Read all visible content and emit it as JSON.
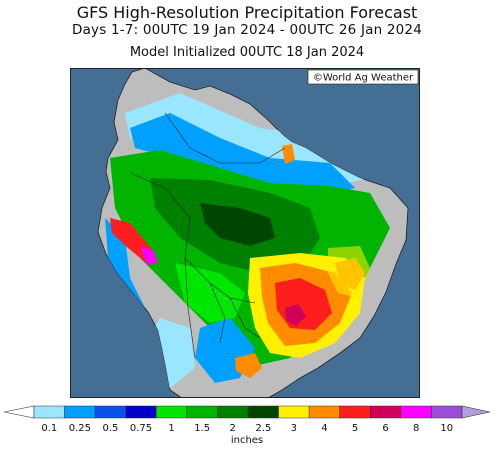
{
  "header": {
    "title": "GFS High-Resolution Precipitation Forecast",
    "period": "Days 1-7: 00UTC 19 Jan 2024 - 00UTC 26 Jan 2024",
    "init": "Model Initialized 00UTC 18 Jan 2024"
  },
  "map": {
    "credit": "©World Ag Weather",
    "ocean_color": "#456e95",
    "land_dry_color": "#bdbdbd"
  },
  "colorbar": {
    "unit": "inches",
    "ticks": [
      "0.1",
      "0.25",
      "0.5",
      "0.75",
      "1",
      "1.5",
      "2",
      "2.5",
      "3",
      "4",
      "5",
      "6",
      "8",
      "10"
    ],
    "colors": [
      "#9ae6ff",
      "#00a0ff",
      "#0a50e6",
      "#0000c8",
      "#00e600",
      "#00b400",
      "#008000",
      "#004600",
      "#fff000",
      "#ff8c00",
      "#ff1e1e",
      "#d0005a",
      "#ff00ff",
      "#9b4fd6"
    ],
    "under_color": "#ffffff",
    "over_color": "#b39ddb"
  }
}
